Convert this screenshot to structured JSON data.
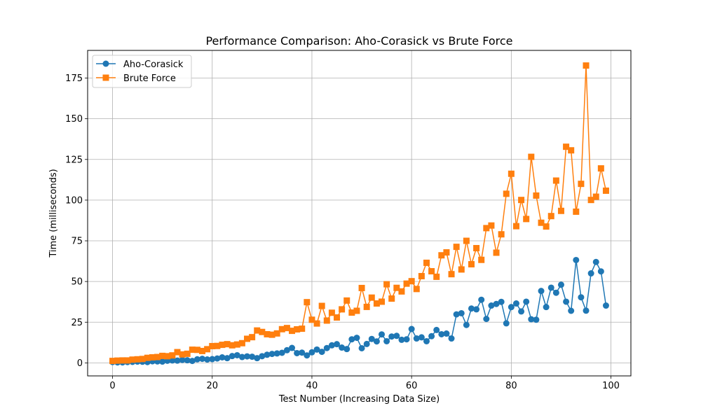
{
  "chart_data": {
    "type": "line",
    "title": "Performance Comparison: Aho-Corasick vs Brute Force",
    "xlabel": "Test Number (Increasing Data Size)",
    "ylabel": "Time (milliseconds)",
    "xlim": [
      -5,
      104
    ],
    "ylim": [
      -8,
      192
    ],
    "xticks": [
      0,
      20,
      40,
      60,
      80,
      100
    ],
    "yticks": [
      0,
      25,
      50,
      75,
      100,
      125,
      150,
      175
    ],
    "grid": true,
    "legend_position": "top-left",
    "x": [
      0,
      1,
      2,
      3,
      4,
      5,
      6,
      7,
      8,
      9,
      10,
      11,
      12,
      13,
      14,
      15,
      16,
      17,
      18,
      19,
      20,
      21,
      22,
      23,
      24,
      25,
      26,
      27,
      28,
      29,
      30,
      31,
      32,
      33,
      34,
      35,
      36,
      37,
      38,
      39,
      40,
      41,
      42,
      43,
      44,
      45,
      46,
      47,
      48,
      49,
      50,
      51,
      52,
      53,
      54,
      55,
      56,
      57,
      58,
      59,
      60,
      61,
      62,
      63,
      64,
      65,
      66,
      67,
      68,
      69,
      70,
      71,
      72,
      73,
      74,
      75,
      76,
      77,
      78,
      79,
      80,
      81,
      82,
      83,
      84,
      85,
      86,
      87,
      88,
      89,
      90,
      91,
      92,
      93,
      94,
      95,
      96,
      97,
      98,
      99
    ],
    "series": [
      {
        "name": "Aho-Corasick",
        "color": "#1f77b4",
        "marker": "circle",
        "values": [
          0.5,
          0.3,
          0.3,
          0.5,
          0.6,
          0.8,
          0.7,
          0.5,
          1.0,
          0.9,
          0.8,
          1.3,
          1.5,
          1.4,
          1.8,
          1.6,
          1.2,
          2.2,
          2.5,
          2.1,
          2.3,
          2.7,
          3.4,
          2.9,
          4.2,
          4.7,
          3.6,
          4.0,
          3.8,
          2.9,
          4.1,
          5.0,
          5.5,
          5.8,
          6.2,
          7.8,
          9.2,
          6.0,
          6.3,
          4.6,
          6.5,
          8.2,
          6.8,
          9.1,
          10.8,
          11.5,
          9.4,
          8.5,
          14.5,
          15.4,
          9.0,
          11.6,
          14.7,
          13.2,
          17.5,
          13.3,
          16.2,
          16.6,
          14.2,
          14.5,
          20.8,
          15.0,
          15.7,
          13.3,
          16.4,
          20.2,
          17.6,
          18.0,
          15.0,
          29.8,
          30.5,
          23.3,
          33.4,
          32.9,
          38.8,
          27.0,
          35.2,
          36.2,
          37.5,
          24.3,
          34.3,
          36.5,
          31.6,
          37.6,
          26.8,
          26.5,
          44.2,
          34.3,
          46.2,
          43.1,
          48.0,
          37.6,
          32.0,
          63.2,
          40.3,
          32.1,
          55.0,
          62.0,
          56.2,
          35.2
        ]
      },
      {
        "name": "Brute Force",
        "color": "#ff7f0e",
        "marker": "square",
        "values": [
          1.2,
          1.4,
          1.5,
          1.5,
          2.0,
          2.2,
          2.4,
          3.1,
          3.4,
          3.6,
          4.3,
          4.1,
          4.6,
          6.6,
          5.2,
          5.6,
          8.1,
          8.0,
          7.3,
          8.4,
          10.3,
          10.4,
          11.1,
          11.5,
          10.8,
          11.3,
          12.1,
          14.8,
          15.8,
          19.9,
          19.0,
          17.6,
          17.3,
          18.1,
          20.7,
          21.4,
          19.7,
          20.6,
          21.0,
          37.3,
          26.5,
          24.2,
          35.0,
          26.0,
          30.8,
          27.9,
          32.9,
          38.3,
          30.9,
          32.0,
          46.0,
          34.4,
          40.1,
          36.5,
          37.6,
          48.3,
          39.5,
          46.1,
          43.9,
          48.7,
          50.2,
          45.4,
          53.3,
          61.5,
          56.3,
          52.9,
          66.1,
          67.9,
          54.5,
          71.3,
          57.4,
          75.0,
          60.6,
          70.5,
          63.3,
          82.8,
          84.4,
          67.7,
          79.0,
          103.9,
          116.2,
          84.0,
          100.1,
          88.4,
          126.6,
          102.8,
          86.1,
          83.8,
          90.2,
          112.0,
          93.4,
          132.8,
          130.6,
          92.9,
          110.0,
          182.7,
          100.1,
          102.1,
          119.5,
          105.8
        ]
      }
    ]
  }
}
